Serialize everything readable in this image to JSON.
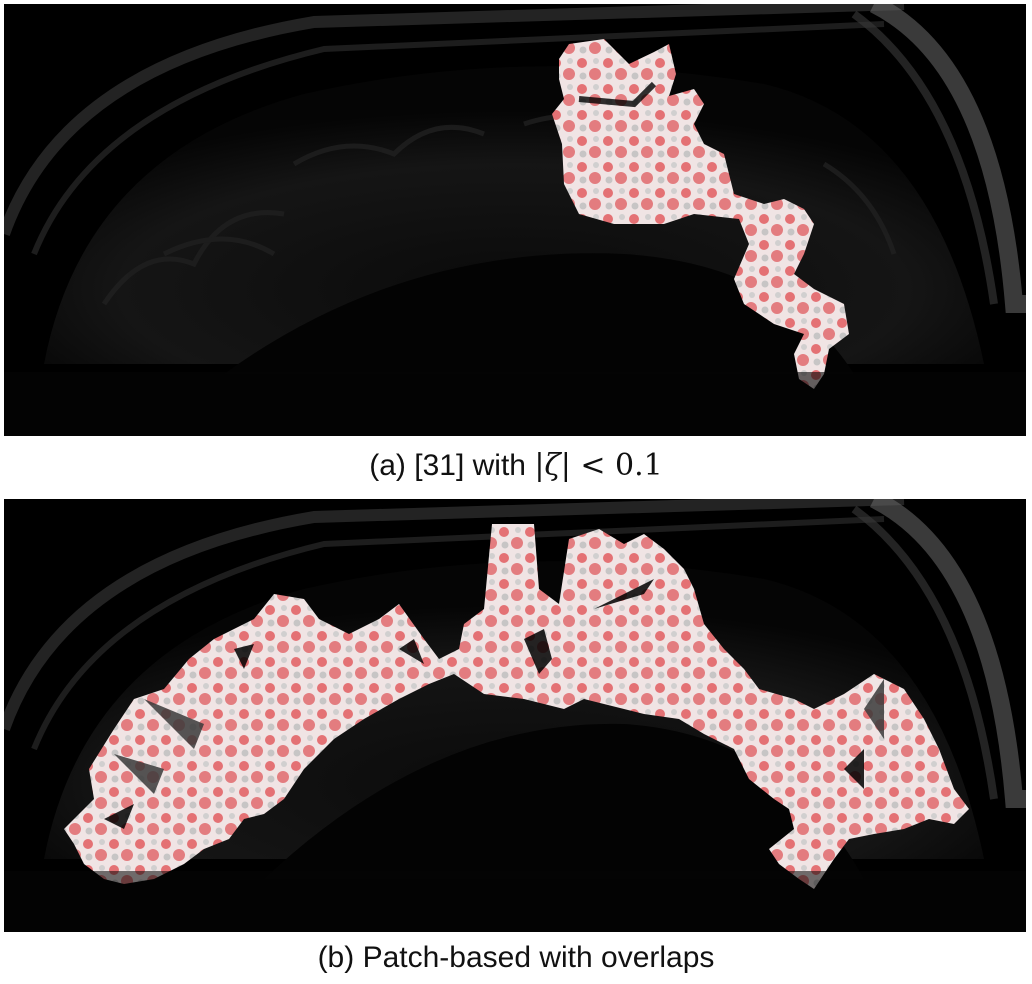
{
  "panel_a": {
    "caption_prefix": "(a) [31] with ",
    "caption_math_open": "|",
    "caption_math_symbol": "ζ",
    "caption_math_close": "| < ",
    "caption_math_value": "0.1",
    "overlay_color": "#d8262b"
  },
  "panel_b": {
    "caption": "(b) Patch-based with overlaps",
    "overlay_color": "#d8262b"
  }
}
